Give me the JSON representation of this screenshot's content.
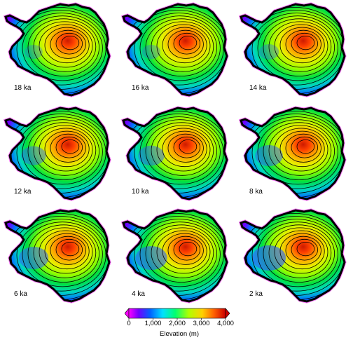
{
  "panels": [
    {
      "label": "18 ka",
      "scale": 0.2
    },
    {
      "label": "16 ka",
      "scale": 0.22
    },
    {
      "label": "14 ka",
      "scale": 0.3
    },
    {
      "label": "12 ka",
      "scale": 0.55
    },
    {
      "label": "10 ka",
      "scale": 0.62
    },
    {
      "label": "8 ka",
      "scale": 0.7
    },
    {
      "label": "6 ka",
      "scale": 0.8
    },
    {
      "label": "4 ka",
      "scale": 0.9
    },
    {
      "label": "2 ka",
      "scale": 1.0
    }
  ],
  "colorbar": {
    "title": "Elevation (m)",
    "min": 0,
    "max": 4000,
    "ticks": [
      {
        "value": 0,
        "label": "0"
      },
      {
        "value": 1000,
        "label": "1,000"
      },
      {
        "value": 2000,
        "label": "2,000"
      },
      {
        "value": 3000,
        "label": "3,000"
      },
      {
        "value": 4000,
        "label": "4,000"
      }
    ],
    "colors": [
      "#ff00ff",
      "#5a00ff",
      "#0050ff",
      "#00d8ff",
      "#00ff60",
      "#c8ff00",
      "#ffd000",
      "#ff6000",
      "#cc0000"
    ],
    "extend": "both"
  }
}
